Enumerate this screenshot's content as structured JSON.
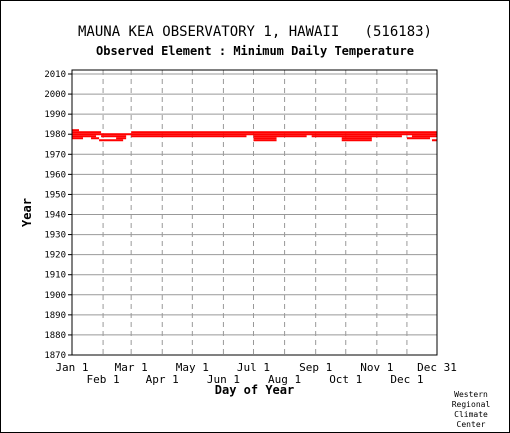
{
  "chart_data": {
    "type": "scatter",
    "title": "MAUNA KEA OBSERVATORY 1, HAWAII   (516183)",
    "subtitle": "Observed Element : Minimum Daily Temperature",
    "xlabel": "Day of Year",
    "ylabel": "Year",
    "xlim": [
      1,
      365
    ],
    "ylim": [
      1870,
      2012
    ],
    "yticks": [
      2010,
      2000,
      1990,
      1980,
      1970,
      1960,
      1950,
      1940,
      1930,
      1920,
      1910,
      1900,
      1890,
      1880,
      1870
    ],
    "xticks_upper": [
      {
        "label": "Jan 1",
        "day": 1
      },
      {
        "label": "Mar 1",
        "day": 60
      },
      {
        "label": "May 1",
        "day": 121
      },
      {
        "label": "Jul 1",
        "day": 182
      },
      {
        "label": "Sep 1",
        "day": 244
      },
      {
        "label": "Nov 1",
        "day": 305
      },
      {
        "label": "Dec 31",
        "day": 365
      }
    ],
    "xticks_lower": [
      {
        "label": "Feb 1",
        "day": 32
      },
      {
        "label": "Apr 1",
        "day": 91
      },
      {
        "label": "Jun 1",
        "day": 152
      },
      {
        "label": "Aug 1",
        "day": 213
      },
      {
        "label": "Oct 1",
        "day": 274
      },
      {
        "label": "Dec 1",
        "day": 335
      }
    ],
    "grid": true,
    "mark_color": "#ff0000",
    "segments": [
      {
        "year": 1982,
        "start": 1,
        "end": 8
      },
      {
        "year": 1981,
        "start": 1,
        "end": 30
      },
      {
        "year": 1981,
        "start": 60,
        "end": 365
      },
      {
        "year": 1980,
        "start": 1,
        "end": 365
      },
      {
        "year": 1979,
        "start": 1,
        "end": 25
      },
      {
        "year": 1979,
        "start": 30,
        "end": 55
      },
      {
        "year": 1979,
        "start": 60,
        "end": 175
      },
      {
        "year": 1979,
        "start": 182,
        "end": 235
      },
      {
        "year": 1979,
        "start": 240,
        "end": 330
      },
      {
        "year": 1979,
        "start": 340,
        "end": 365
      },
      {
        "year": 1978,
        "start": 1,
        "end": 12
      },
      {
        "year": 1978,
        "start": 20,
        "end": 28
      },
      {
        "year": 1978,
        "start": 45,
        "end": 55
      },
      {
        "year": 1978,
        "start": 182,
        "end": 205
      },
      {
        "year": 1978,
        "start": 270,
        "end": 300
      },
      {
        "year": 1978,
        "start": 335,
        "end": 358
      },
      {
        "year": 1977,
        "start": 28,
        "end": 52
      },
      {
        "year": 1977,
        "start": 270,
        "end": 300
      },
      {
        "year": 1977,
        "start": 360,
        "end": 365
      },
      {
        "year": 1977,
        "start": 182,
        "end": 205
      }
    ],
    "credit": [
      "Western",
      "Regional",
      "Climate",
      "Center"
    ]
  }
}
